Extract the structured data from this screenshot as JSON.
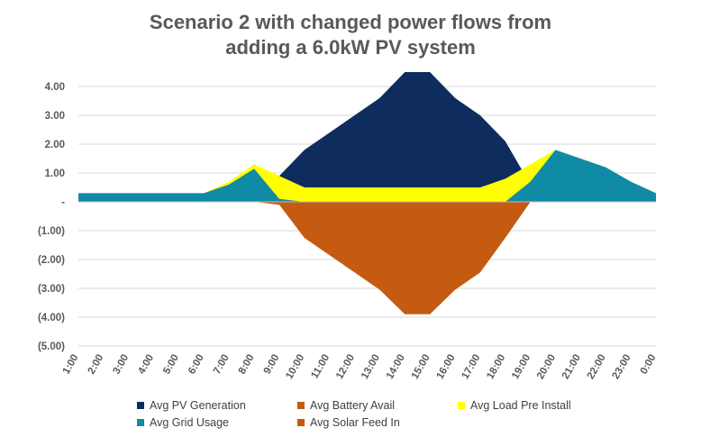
{
  "chart_data": {
    "type": "area",
    "title_lines": [
      "Scenario 2 with changed power flows from",
      "adding a 6.0kW PV system"
    ],
    "categories": [
      "1:00",
      "2:00",
      "3:00",
      "4:00",
      "5:00",
      "6:00",
      "7:00",
      "8:00",
      "9:00",
      "10:00",
      "11:00",
      "12:00",
      "13:00",
      "14:00",
      "15:00",
      "16:00",
      "17:00",
      "18:00",
      "19:00",
      "20:00",
      "21:00",
      "22:00",
      "23:00",
      "0:00"
    ],
    "ylim": [
      -5,
      4.5
    ],
    "yticks": [
      {
        "value": 4,
        "label": "4.00"
      },
      {
        "value": 3,
        "label": "3.00"
      },
      {
        "value": 2,
        "label": "2.00"
      },
      {
        "value": 1,
        "label": "1.00"
      },
      {
        "value": 0,
        "label": "-"
      },
      {
        "value": -1,
        "label": "(1.00)"
      },
      {
        "value": -2,
        "label": "(2.00)"
      },
      {
        "value": -3,
        "label": "(3.00)"
      },
      {
        "value": -4,
        "label": "(4.00)"
      },
      {
        "value": -5,
        "label": "(5.00)"
      }
    ],
    "grid": true,
    "legend_position": "bottom",
    "series": [
      {
        "name": "Avg PV Generation",
        "color": "#0E2D5E",
        "values": [
          0,
          0,
          0,
          0,
          0,
          0,
          0,
          0,
          0.9,
          1.8,
          2.4,
          3.0,
          3.6,
          4.5,
          4.5,
          3.6,
          3.0,
          2.1,
          0.6,
          0,
          0,
          0,
          0,
          0
        ]
      },
      {
        "name": "Avg Load Pre Install",
        "color": "#FFFF00",
        "values": [
          0.3,
          0.3,
          0.3,
          0.3,
          0.3,
          0.3,
          0.7,
          1.3,
          0.9,
          0.5,
          0.5,
          0.5,
          0.5,
          0.5,
          0.5,
          0.5,
          0.5,
          0.8,
          1.3,
          1.8,
          1.5,
          1.2,
          0.7,
          0.3
        ]
      },
      {
        "name": "Avg Grid Usage",
        "color": "#108BA6",
        "values": [
          0.3,
          0.3,
          0.3,
          0.3,
          0.3,
          0.3,
          0.6,
          1.15,
          0.1,
          0,
          0,
          0,
          0,
          0,
          0,
          0,
          0,
          0,
          0.7,
          1.8,
          1.5,
          1.2,
          0.7,
          0.3
        ]
      },
      {
        "name": "Avg Battery Avail",
        "color": "#C55A11",
        "values": [
          0,
          0,
          0,
          0,
          0,
          0,
          0,
          0,
          0,
          0,
          0,
          0,
          0,
          0,
          0,
          0,
          0,
          0,
          0,
          0,
          0,
          0,
          0,
          0
        ]
      },
      {
        "name": "Avg Solar Feed In",
        "color": "#C55A11",
        "values": [
          0,
          0,
          0,
          0,
          0,
          0,
          0,
          0,
          -0.1,
          -1.25,
          -1.85,
          -2.45,
          -3.05,
          -3.9,
          -3.9,
          -3.05,
          -2.45,
          -1.25,
          0,
          0,
          0,
          0,
          0,
          0
        ]
      }
    ]
  }
}
